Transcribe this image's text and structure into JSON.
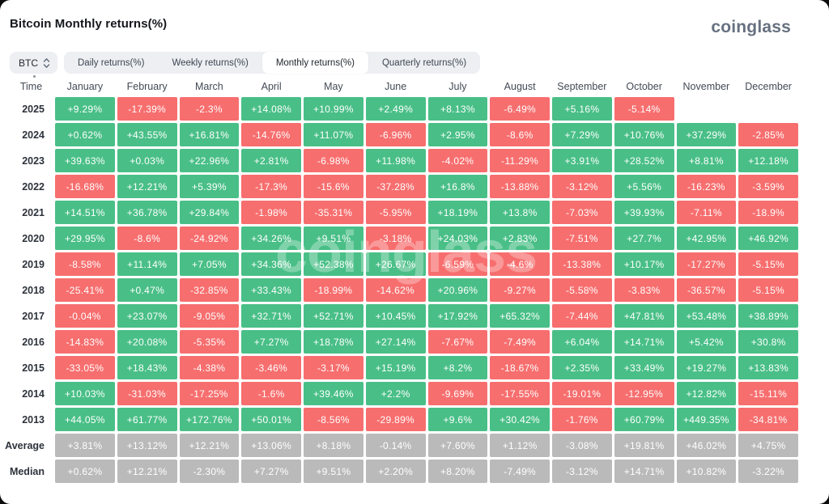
{
  "page": {
    "title": "Bitcoin Monthly returns(%)",
    "logo": "coinglass",
    "watermark": "coinglass"
  },
  "controls": {
    "symbol": "BTC",
    "tabs": [
      {
        "label": "Daily returns(%)",
        "active": false
      },
      {
        "label": "Weekly returns(%)",
        "active": false
      },
      {
        "label": "Monthly returns(%)",
        "active": true
      },
      {
        "label": "Quarterly returns(%)",
        "active": false
      }
    ]
  },
  "colors": {
    "positive": "#49bf87",
    "negative": "#f76e6e",
    "neutral": "#bababa"
  },
  "chart_data": {
    "type": "heatmap",
    "title": "Bitcoin Monthly returns(%)",
    "row_header": "Time",
    "columns": [
      "January",
      "February",
      "March",
      "April",
      "May",
      "June",
      "July",
      "August",
      "September",
      "October",
      "November",
      "December"
    ],
    "rows": [
      {
        "label": "2025",
        "kind": "year",
        "values": [
          "+9.29%",
          "-17.39%",
          "-2.3%",
          "+14.08%",
          "+10.99%",
          "+2.49%",
          "+8.13%",
          "-6.49%",
          "+5.16%",
          "-5.14%",
          "",
          ""
        ]
      },
      {
        "label": "2024",
        "kind": "year",
        "values": [
          "+0.62%",
          "+43.55%",
          "+16.81%",
          "-14.76%",
          "+11.07%",
          "-6.96%",
          "+2.95%",
          "-8.6%",
          "+7.29%",
          "+10.76%",
          "+37.29%",
          "-2.85%"
        ]
      },
      {
        "label": "2023",
        "kind": "year",
        "values": [
          "+39.63%",
          "+0.03%",
          "+22.96%",
          "+2.81%",
          "-6.98%",
          "+11.98%",
          "-4.02%",
          "-11.29%",
          "+3.91%",
          "+28.52%",
          "+8.81%",
          "+12.18%"
        ]
      },
      {
        "label": "2022",
        "kind": "year",
        "values": [
          "-16.68%",
          "+12.21%",
          "+5.39%",
          "-17.3%",
          "-15.6%",
          "-37.28%",
          "+16.8%",
          "-13.88%",
          "-3.12%",
          "+5.56%",
          "-16.23%",
          "-3.59%"
        ]
      },
      {
        "label": "2021",
        "kind": "year",
        "values": [
          "+14.51%",
          "+36.78%",
          "+29.84%",
          "-1.98%",
          "-35.31%",
          "-5.95%",
          "+18.19%",
          "+13.8%",
          "-7.03%",
          "+39.93%",
          "-7.11%",
          "-18.9%"
        ]
      },
      {
        "label": "2020",
        "kind": "year",
        "values": [
          "+29.95%",
          "-8.6%",
          "-24.92%",
          "+34.26%",
          "+9.51%",
          "-3.18%",
          "+24.03%",
          "+2.83%",
          "-7.51%",
          "+27.7%",
          "+42.95%",
          "+46.92%"
        ]
      },
      {
        "label": "2019",
        "kind": "year",
        "values": [
          "-8.58%",
          "+11.14%",
          "+7.05%",
          "+34.36%",
          "+52.38%",
          "+26.67%",
          "-6.59%",
          "-4.6%",
          "-13.38%",
          "+10.17%",
          "-17.27%",
          "-5.15%"
        ]
      },
      {
        "label": "2018",
        "kind": "year",
        "values": [
          "-25.41%",
          "+0.47%",
          "-32.85%",
          "+33.43%",
          "-18.99%",
          "-14.62%",
          "+20.96%",
          "-9.27%",
          "-5.58%",
          "-3.83%",
          "-36.57%",
          "-5.15%"
        ]
      },
      {
        "label": "2017",
        "kind": "year",
        "values": [
          "-0.04%",
          "+23.07%",
          "-9.05%",
          "+32.71%",
          "+52.71%",
          "+10.45%",
          "+17.92%",
          "+65.32%",
          "-7.44%",
          "+47.81%",
          "+53.48%",
          "+38.89%"
        ]
      },
      {
        "label": "2016",
        "kind": "year",
        "values": [
          "-14.83%",
          "+20.08%",
          "-5.35%",
          "+7.27%",
          "+18.78%",
          "+27.14%",
          "-7.67%",
          "-7.49%",
          "+6.04%",
          "+14.71%",
          "+5.42%",
          "+30.8%"
        ]
      },
      {
        "label": "2015",
        "kind": "year",
        "values": [
          "-33.05%",
          "+18.43%",
          "-4.38%",
          "-3.46%",
          "-3.17%",
          "+15.19%",
          "+8.2%",
          "-18.67%",
          "+2.35%",
          "+33.49%",
          "+19.27%",
          "+13.83%"
        ]
      },
      {
        "label": "2014",
        "kind": "year",
        "values": [
          "+10.03%",
          "-31.03%",
          "-17.25%",
          "-1.6%",
          "+39.46%",
          "+2.2%",
          "-9.69%",
          "-17.55%",
          "-19.01%",
          "-12.95%",
          "+12.82%",
          "-15.11%"
        ]
      },
      {
        "label": "2013",
        "kind": "year",
        "values": [
          "+44.05%",
          "+61.77%",
          "+172.76%",
          "+50.01%",
          "-8.56%",
          "-29.89%",
          "+9.6%",
          "+30.42%",
          "-1.76%",
          "+60.79%",
          "+449.35%",
          "-34.81%"
        ]
      },
      {
        "label": "Average",
        "kind": "stat",
        "values": [
          "+3.81%",
          "+13.12%",
          "+12.21%",
          "+13.06%",
          "+8.18%",
          "-0.14%",
          "+7.60%",
          "+1.12%",
          "-3.08%",
          "+19.81%",
          "+46.02%",
          "+4.75%"
        ]
      },
      {
        "label": "Median",
        "kind": "stat",
        "values": [
          "+0.62%",
          "+12.21%",
          "-2.30%",
          "+7.27%",
          "+9.51%",
          "+2.20%",
          "+8.20%",
          "-7.49%",
          "-3.12%",
          "+14.71%",
          "+10.82%",
          "-3.22%"
        ]
      }
    ]
  }
}
